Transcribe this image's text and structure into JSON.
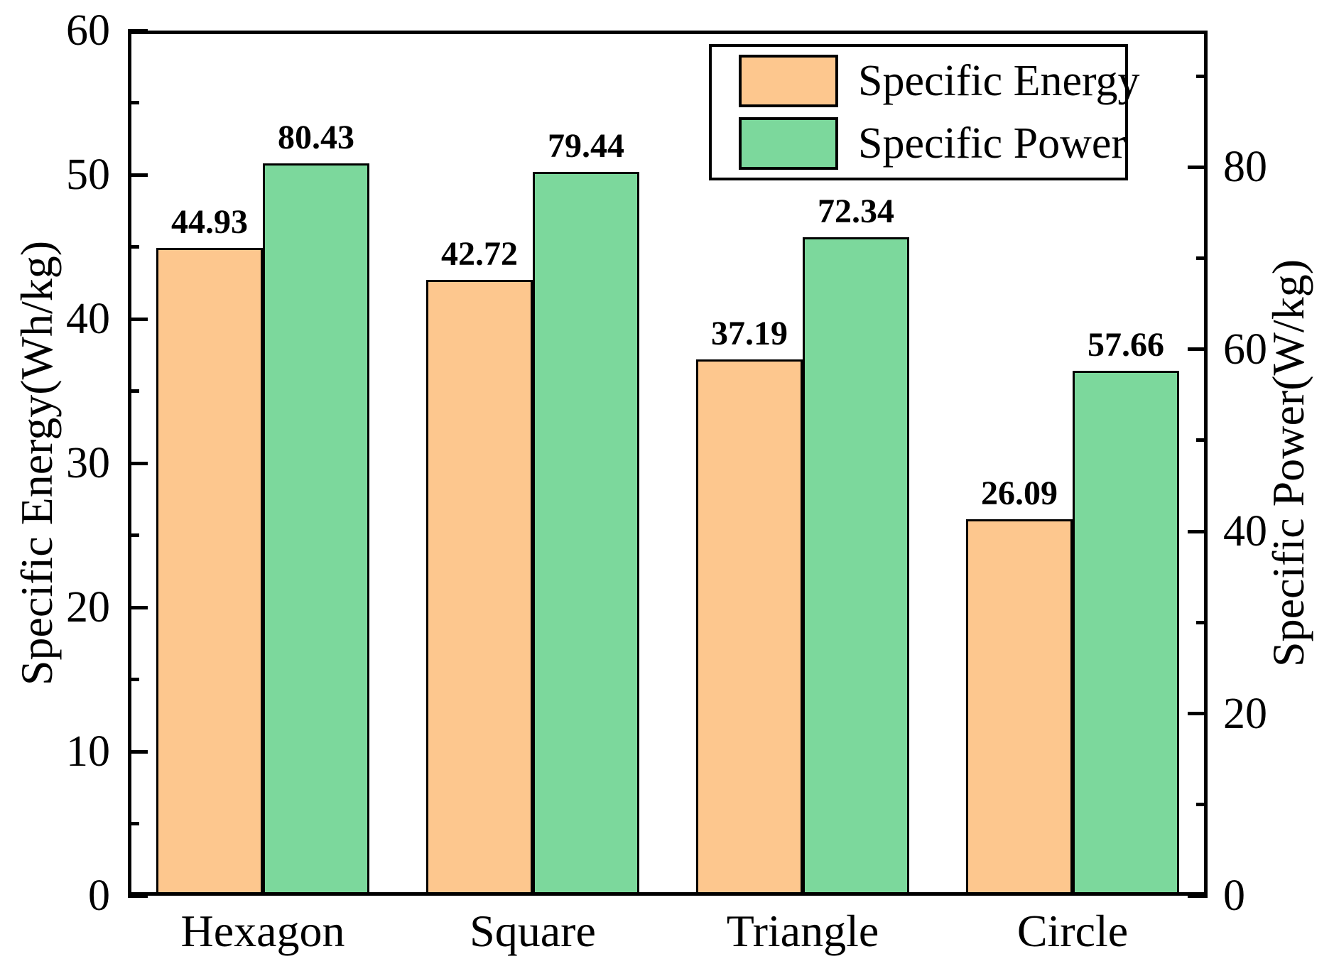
{
  "chart_data": {
    "type": "bar",
    "title": "",
    "categories": [
      "Hexagon",
      "Square",
      "Triangle",
      "Circle"
    ],
    "series": [
      {
        "name": "Specific Energy",
        "axis": "left",
        "color": "#FDC78E",
        "border_color": "#000000",
        "values": [
          44.93,
          42.72,
          37.19,
          26.09
        ]
      },
      {
        "name": "Specific Power",
        "axis": "right",
        "color": "#7CD89C",
        "border_color": "#000000",
        "values": [
          80.43,
          79.44,
          72.34,
          57.66
        ]
      }
    ],
    "left_axis": {
      "label": "Specific Energy(Wh/kg)",
      "min": 0,
      "max": 60,
      "major_step": 10,
      "minor_step": 5,
      "tick_labels": [
        "0",
        "10",
        "20",
        "30",
        "40",
        "50",
        "60"
      ]
    },
    "right_axis": {
      "label": "Specific Power(W/kg)",
      "min": 0,
      "max": 95,
      "major_step": 20,
      "minor_step": 10,
      "tick_labels": [
        "0",
        "20",
        "40",
        "60",
        "80"
      ]
    },
    "value_label_decimals": 2,
    "bar_value_labels": {
      "specific_energy": [
        "44.93",
        "42.72",
        "37.19",
        "26.09"
      ],
      "specific_power": [
        "80.43",
        "79.44",
        "72.34",
        "57.66"
      ]
    },
    "legend": {
      "position": "top-right-inside",
      "entries": [
        "Specific Energy",
        "Specific Power"
      ]
    },
    "grid": false,
    "axis_color": "#000000",
    "background_color": "#ffffff"
  }
}
